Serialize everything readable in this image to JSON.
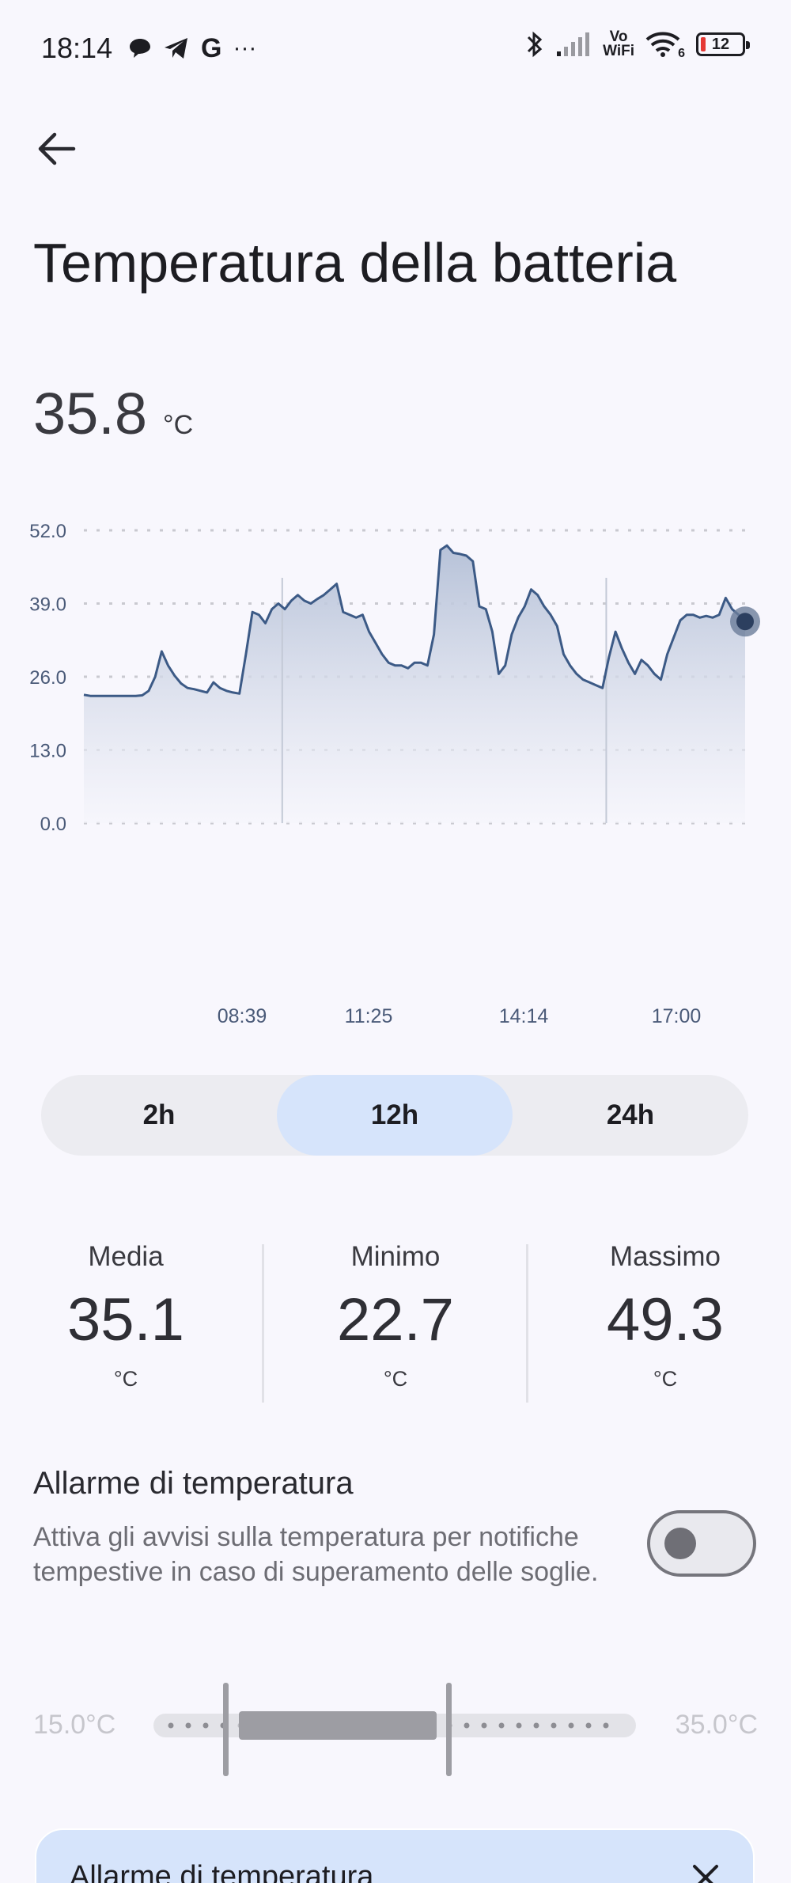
{
  "status_bar": {
    "time": "18:14",
    "icons_left": [
      "chat-bubble-icon",
      "telegram-icon",
      "google-icon",
      "more-dots-icon"
    ],
    "more": "···",
    "google": "G",
    "icons_right": [
      "bluetooth-icon",
      "signal-icon",
      "vowifi-icon",
      "wifi-icon",
      "battery-icon"
    ],
    "vowifi_line1": "Vo",
    "vowifi_line2": "WiFi",
    "wifi_badge": "6",
    "battery_level": "12"
  },
  "header": {
    "back_icon": "arrow-left-icon",
    "title": "Temperatura della batteria"
  },
  "current": {
    "value": "35.8",
    "unit": "°C"
  },
  "chart_data": {
    "type": "area",
    "title": "",
    "xlabel": "",
    "ylabel": "",
    "ylim": [
      0,
      52
    ],
    "y_ticks": [
      "52.0",
      "39.0",
      "26.0",
      "13.0",
      "0.0"
    ],
    "x_ticks": [
      "08:39",
      "11:25",
      "14:14",
      "17:00"
    ],
    "grid": true,
    "line_color": "#3c5a86",
    "fill_color_top": "#b3bfd6",
    "series": [
      {
        "values": [
          22.8,
          22.6,
          22.6,
          22.6,
          22.6,
          22.6,
          22.6,
          22.6,
          22.6,
          22.7,
          23.5,
          26.0,
          30.5,
          28.0,
          26.2,
          24.8,
          24.0,
          23.8,
          23.5,
          23.2,
          25.0,
          24.0,
          23.5,
          23.2,
          23.0,
          30.0,
          37.5,
          37.0,
          35.5,
          38.0,
          39.0,
          38.0,
          39.5,
          40.5,
          39.5,
          39.0,
          39.8,
          40.5,
          41.5,
          42.5,
          37.5,
          37.0,
          36.5,
          37.0,
          34.0,
          32.0,
          30.0,
          28.5,
          28.0,
          28.0,
          27.5,
          28.5,
          28.5,
          28.0,
          33.5,
          48.5,
          49.3,
          48.0,
          47.8,
          47.5,
          46.5,
          38.5,
          38.0,
          34.0,
          26.5,
          28.0,
          33.5,
          36.5,
          38.5,
          41.5,
          40.5,
          38.5,
          37.0,
          35.0,
          30.0,
          28.0,
          26.5,
          25.5,
          25.0,
          24.5,
          24.0,
          29.5,
          34.0,
          31.0,
          28.5,
          26.5,
          29.0,
          28.0,
          26.5,
          25.5,
          30.0,
          33.0,
          36.0,
          37.0,
          37.0,
          36.5,
          36.8,
          36.5,
          37.0,
          40.0,
          38.0,
          37.0,
          35.8
        ]
      }
    ],
    "current_marker": 35.8
  },
  "range_tabs": [
    {
      "label": "2h",
      "active": false
    },
    {
      "label": "12h",
      "active": true
    },
    {
      "label": "24h",
      "active": false
    }
  ],
  "stats": [
    {
      "label": "Media",
      "value": "35.1",
      "unit": "°C"
    },
    {
      "label": "Minimo",
      "value": "22.7",
      "unit": "°C"
    },
    {
      "label": "Massimo",
      "value": "49.3",
      "unit": "°C"
    }
  ],
  "alarm": {
    "title": "Allarme di temperatura",
    "description": "Attiva gli avvisi sulla temperatura per notifiche tempestive in caso di superamento delle soglie.",
    "toggle_on": false,
    "range_min": "15.0°C",
    "range_max": "35.0°C"
  },
  "banner": {
    "title": "Allarme di temperatura",
    "close_icon": "close-icon"
  }
}
